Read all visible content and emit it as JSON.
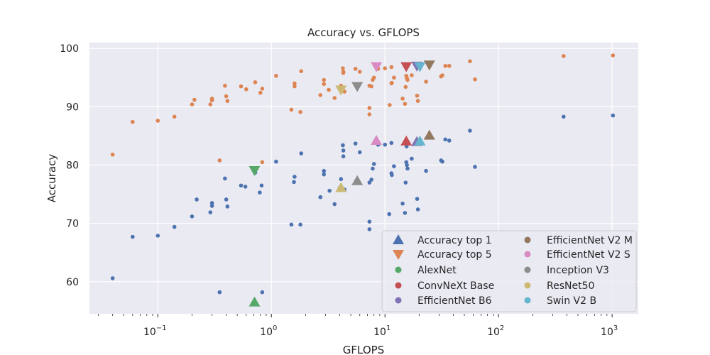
{
  "chart_data": {
    "type": "scatter",
    "title": "Accuracy vs. GFLOPS",
    "xlabel": "GFLOPS",
    "ylabel": "Accuracy",
    "xscale": "log",
    "xlim": [
      0.025,
      1700
    ],
    "ylim": [
      54.5,
      101
    ],
    "xticks": [
      {
        "value": 0.1,
        "base": "10",
        "exp": "−1"
      },
      {
        "value": 1,
        "base": "10",
        "exp": "0"
      },
      {
        "value": 10,
        "base": "10",
        "exp": "1"
      },
      {
        "value": 100,
        "base": "10",
        "exp": "2"
      },
      {
        "value": 1000,
        "base": "10",
        "exp": "3"
      }
    ],
    "yticks": [
      60,
      70,
      80,
      90,
      100
    ],
    "grid": true,
    "legend_position": "lower-right",
    "colors": {
      "top1": "#4c72b0",
      "top5": "#dd8452",
      "AlexNet": "#55a868",
      "ConvNeXt Base": "#c44e52",
      "EfficientNet B6": "#8172b3",
      "EfficientNet V2 M": "#937860",
      "EfficientNet V2 S": "#da8bc3",
      "Inception V3": "#8c8c8c",
      "ResNet50": "#ccb974",
      "Swin V2 B": "#64b5cd",
      "background": "#eaeaf2",
      "grid": "#ffffff"
    },
    "series": [
      {
        "name": "top1-all",
        "marker": "dot",
        "color_key": "top1",
        "points": [
          [
            0.04,
            60.6
          ],
          [
            0.06,
            67.7
          ],
          [
            0.1,
            67.9
          ],
          [
            0.14,
            69.4
          ],
          [
            0.2,
            71.2
          ],
          [
            0.22,
            74.1
          ],
          [
            0.29,
            71.9
          ],
          [
            0.3,
            73
          ],
          [
            0.3,
            73.5
          ],
          [
            0.35,
            58.2
          ],
          [
            0.39,
            77.7
          ],
          [
            0.4,
            74.1
          ],
          [
            0.41,
            72.9
          ],
          [
            0.54,
            76.5
          ],
          [
            0.59,
            76.3
          ],
          [
            0.72,
            78.7
          ],
          [
            0.79,
            75.3
          ],
          [
            0.82,
            76.5
          ],
          [
            0.83,
            58.2
          ],
          [
            1.1,
            80.6
          ],
          [
            1.5,
            69.8
          ],
          [
            1.58,
            77.1
          ],
          [
            1.6,
            78
          ],
          [
            1.8,
            69.8
          ],
          [
            1.83,
            82
          ],
          [
            2.7,
            74.5
          ],
          [
            2.9,
            78.4
          ],
          [
            2.9,
            79
          ],
          [
            3.25,
            75.6
          ],
          [
            3.6,
            73.3
          ],
          [
            4.0,
            76.1
          ],
          [
            4.1,
            77.6
          ],
          [
            4.26,
            83.4
          ],
          [
            4.3,
            82.5
          ],
          [
            4.3,
            81.5
          ],
          [
            4.4,
            75.8
          ],
          [
            5.5,
            83.7
          ],
          [
            6.0,
            82.2
          ],
          [
            7.3,
            70.3
          ],
          [
            7.3,
            69
          ],
          [
            7.3,
            77
          ],
          [
            7.6,
            77.5
          ],
          [
            7.8,
            79.4
          ],
          [
            8.0,
            80.2
          ],
          [
            8.7,
            83.5
          ],
          [
            10.0,
            83.5
          ],
          [
            10.9,
            71.6
          ],
          [
            11.4,
            83.8
          ],
          [
            11.4,
            78.6
          ],
          [
            11.5,
            78.3
          ],
          [
            12.0,
            79.8
          ],
          [
            14.3,
            73.4
          ],
          [
            15.0,
            71.8
          ],
          [
            15.2,
            77
          ],
          [
            15.4,
            80.5
          ],
          [
            15.6,
            80
          ],
          [
            15.8,
            79.4
          ],
          [
            15.5,
            83.2
          ],
          [
            17.2,
            81.1
          ],
          [
            19.2,
            74.2
          ],
          [
            19.5,
            72.4
          ],
          [
            23.0,
            79
          ],
          [
            31.2,
            80.8
          ],
          [
            32.0,
            80.6
          ],
          [
            34.0,
            84.4
          ],
          [
            36.8,
            84.2
          ],
          [
            56.0,
            85.9
          ],
          [
            62.0,
            79.7
          ],
          [
            374,
            88.3
          ],
          [
            1017,
            88.5
          ]
        ]
      },
      {
        "name": "top5-all",
        "marker": "dot",
        "color_key": "top5",
        "points": [
          [
            0.04,
            81.8
          ],
          [
            0.06,
            87.4
          ],
          [
            0.1,
            87.6
          ],
          [
            0.14,
            88.3
          ],
          [
            0.2,
            90.4
          ],
          [
            0.21,
            91.2
          ],
          [
            0.29,
            90.4
          ],
          [
            0.3,
            91.1
          ],
          [
            0.3,
            91.4
          ],
          [
            0.35,
            80.8
          ],
          [
            0.39,
            93.6
          ],
          [
            0.4,
            91.8
          ],
          [
            0.41,
            91
          ],
          [
            0.54,
            93.5
          ],
          [
            0.6,
            93
          ],
          [
            0.72,
            94.2
          ],
          [
            0.8,
            92.4
          ],
          [
            0.83,
            93.1
          ],
          [
            0.83,
            80.5
          ],
          [
            1.1,
            95.3
          ],
          [
            1.5,
            89.5
          ],
          [
            1.6,
            93.5
          ],
          [
            1.6,
            94
          ],
          [
            1.8,
            89.1
          ],
          [
            1.83,
            96.1
          ],
          [
            2.7,
            92
          ],
          [
            2.9,
            93.9
          ],
          [
            2.9,
            94.6
          ],
          [
            3.2,
            92.9
          ],
          [
            3.6,
            91.5
          ],
          [
            4.1,
            92.9
          ],
          [
            4.1,
            93.6
          ],
          [
            4.26,
            96.6
          ],
          [
            4.3,
            96
          ],
          [
            4.3,
            95.8
          ],
          [
            4.4,
            92.6
          ],
          [
            5.5,
            96.5
          ],
          [
            6.0,
            96
          ],
          [
            7.3,
            89.8
          ],
          [
            7.3,
            88.7
          ],
          [
            7.3,
            93.6
          ],
          [
            7.6,
            93.5
          ],
          [
            7.8,
            94.6
          ],
          [
            8.0,
            95
          ],
          [
            8.7,
            96.5
          ],
          [
            10.0,
            96.6
          ],
          [
            11.0,
            90.3
          ],
          [
            11.4,
            96.8
          ],
          [
            11.4,
            94
          ],
          [
            11.5,
            94.1
          ],
          [
            12.0,
            95
          ],
          [
            14.3,
            91.4
          ],
          [
            15.0,
            90.5
          ],
          [
            15.2,
            93.4
          ],
          [
            15.4,
            95.3
          ],
          [
            15.6,
            94.9
          ],
          [
            15.8,
            94.6
          ],
          [
            17.2,
            95.4
          ],
          [
            19.2,
            91.9
          ],
          [
            19.5,
            91
          ],
          [
            23.0,
            94.3
          ],
          [
            31.2,
            95.2
          ],
          [
            32.0,
            95.4
          ],
          [
            34.0,
            97
          ],
          [
            36.8,
            97
          ],
          [
            56.0,
            97.8
          ],
          [
            62.0,
            94.7
          ],
          [
            374,
            98.7
          ],
          [
            1017,
            98.8
          ]
        ]
      },
      {
        "name": "highlight-top1",
        "marker": "triangle-up",
        "points": [
          {
            "model": "AlexNet",
            "x": 0.71,
            "y": 56.5
          },
          {
            "model": "ConvNeXt Base",
            "x": 15.4,
            "y": 84.1
          },
          {
            "model": "EfficientNet B6",
            "x": 19.1,
            "y": 84
          },
          {
            "model": "EfficientNet V2 M",
            "x": 24.6,
            "y": 85.1
          },
          {
            "model": "EfficientNet V2 S",
            "x": 8.4,
            "y": 84.2
          },
          {
            "model": "Inception V3",
            "x": 5.7,
            "y": 77.3
          },
          {
            "model": "ResNet50",
            "x": 4.1,
            "y": 76.1
          },
          {
            "model": "Swin V2 B",
            "x": 20.3,
            "y": 84.1
          }
        ]
      },
      {
        "name": "highlight-top5",
        "marker": "triangle-down",
        "points": [
          {
            "model": "AlexNet",
            "x": 0.71,
            "y": 79.1
          },
          {
            "model": "ConvNeXt Base",
            "x": 15.4,
            "y": 96.9
          },
          {
            "model": "EfficientNet B6",
            "x": 19.1,
            "y": 97
          },
          {
            "model": "EfficientNet V2 M",
            "x": 24.6,
            "y": 97.2
          },
          {
            "model": "EfficientNet V2 S",
            "x": 8.4,
            "y": 96.9
          },
          {
            "model": "Inception V3",
            "x": 5.7,
            "y": 93.5
          },
          {
            "model": "ResNet50",
            "x": 4.1,
            "y": 92.9
          },
          {
            "model": "Swin V2 B",
            "x": 20.3,
            "y": 96.9
          }
        ]
      }
    ],
    "legend": [
      {
        "label": "Accuracy top 1",
        "marker": "triangle-up",
        "color_key": "top1"
      },
      {
        "label": "Accuracy top 5",
        "marker": "triangle-down",
        "color_key": "top5"
      },
      {
        "label": "AlexNet",
        "marker": "dot",
        "color_key": "AlexNet"
      },
      {
        "label": "ConvNeXt Base",
        "marker": "dot",
        "color_key": "ConvNeXt Base"
      },
      {
        "label": "EfficientNet B6",
        "marker": "dot",
        "color_key": "EfficientNet B6"
      },
      {
        "label": "EfficientNet V2 M",
        "marker": "dot",
        "color_key": "EfficientNet V2 M"
      },
      {
        "label": "EfficientNet V2 S",
        "marker": "dot",
        "color_key": "EfficientNet V2 S"
      },
      {
        "label": "Inception V3",
        "marker": "dot",
        "color_key": "Inception V3"
      },
      {
        "label": "ResNet50",
        "marker": "dot",
        "color_key": "ResNet50"
      },
      {
        "label": "Swin V2 B",
        "marker": "dot",
        "color_key": "Swin V2 B"
      }
    ]
  }
}
